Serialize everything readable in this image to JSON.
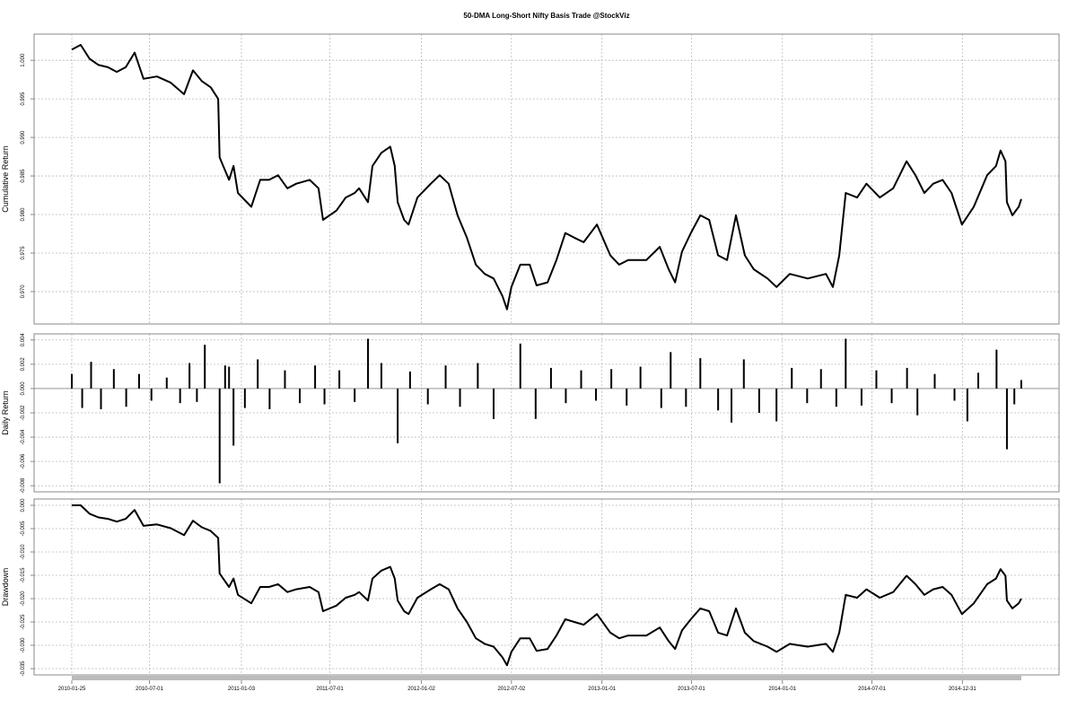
{
  "chart_data": [
    {
      "type": "line",
      "title": "50-DMA Long-Short Nifty Basis Trade @StockViz",
      "y_label": "Cumulative Return",
      "color": "#000000",
      "grid": true,
      "xlim": [
        "2010-01-25",
        "2015-05-01"
      ],
      "ylim": [
        0.9658,
        1.0034
      ],
      "yticks": [
        {
          "value": 1,
          "label": "1.000"
        },
        0.995,
        {
          "value": 0.99,
          "label": "0.990"
        },
        0.985,
        {
          "value": 0.98,
          "label": "0.980"
        },
        0.975,
        {
          "value": 0.97,
          "label": "0.970"
        }
      ],
      "x": [
        "2010-01-25",
        "2010-02-12",
        "2010-03-02",
        "2010-03-20",
        "2010-04-08",
        "2010-04-26",
        "2010-05-14",
        "2010-06-01",
        "2010-06-19",
        "2010-07-16",
        "2010-08-13",
        "2010-09-09",
        "2010-09-27",
        "2010-10-15",
        "2010-11-02",
        "2010-11-17",
        "2010-11-20",
        "2010-12-09",
        "2010-12-18",
        "2010-12-27",
        "2011-01-23",
        "2011-02-10",
        "2011-02-28",
        "2011-03-18",
        "2011-04-06",
        "2011-04-24",
        "2011-05-21",
        "2011-06-08",
        "2011-06-17",
        "2011-07-14",
        "2011-08-02",
        "2011-08-20",
        "2011-08-29",
        "2011-09-16",
        "2011-09-25",
        "2011-10-13",
        "2011-10-31",
        "2011-11-09",
        "2011-11-15",
        "2011-11-28",
        "2011-12-07",
        "2011-12-25",
        "2012-01-21",
        "2012-02-08",
        "2012-02-26",
        "2012-03-15",
        "2012-04-03",
        "2012-04-21",
        "2012-05-09",
        "2012-05-27",
        "2012-06-14",
        "2012-06-23",
        "2012-07-02",
        "2012-07-20",
        "2012-08-08",
        "2012-08-22",
        "2012-09-13",
        "2012-10-01",
        "2012-10-19",
        "2012-11-06",
        "2012-11-25",
        "2012-12-22",
        "2013-01-18",
        "2013-02-05",
        "2013-02-23",
        "2013-04-01",
        "2013-04-28",
        "2013-05-16",
        "2013-05-29",
        "2013-06-12",
        "2013-06-30",
        "2013-07-19",
        "2013-08-06",
        "2013-08-24",
        "2013-09-11",
        "2013-09-29",
        "2013-10-17",
        "2013-11-04",
        "2013-12-02",
        "2013-12-20",
        "2014-01-16",
        "2014-02-21",
        "2014-03-30",
        "2014-04-13",
        "2014-04-26",
        "2014-05-09",
        "2014-06-01",
        "2014-06-20",
        "2014-07-17",
        "2014-08-13",
        "2014-09-09",
        "2014-09-27",
        "2014-10-15",
        "2014-11-02",
        "2014-11-21",
        "2014-12-09",
        "2014-12-30",
        "2015-01-23",
        "2015-02-19",
        "2015-03-09",
        "2015-03-18",
        "2015-03-28",
        "2015-03-31",
        "2015-04-11",
        "2015-04-24",
        "2015-04-29"
      ],
      "values": [
        1.0014,
        1.002,
        1.0002,
        0.9994,
        0.9991,
        0.9985,
        0.9991,
        1.001,
        0.9976,
        0.9979,
        0.9971,
        0.9956,
        0.9987,
        0.9973,
        0.9965,
        0.995,
        0.9874,
        0.9845,
        0.9863,
        0.9828,
        0.981,
        0.9845,
        0.9845,
        0.9851,
        0.9834,
        0.984,
        0.9845,
        0.9834,
        0.9793,
        0.9805,
        0.9822,
        0.9828,
        0.9834,
        0.9816,
        0.9863,
        0.988,
        0.9888,
        0.9863,
        0.9816,
        0.9793,
        0.9787,
        0.9822,
        0.984,
        0.9851,
        0.984,
        0.9799,
        0.977,
        0.9735,
        0.9723,
        0.9717,
        0.9694,
        0.9677,
        0.9706,
        0.9735,
        0.9735,
        0.9708,
        0.9712,
        0.9741,
        0.9776,
        0.977,
        0.9764,
        0.9787,
        0.9747,
        0.9735,
        0.9741,
        0.9741,
        0.9758,
        0.9729,
        0.9712,
        0.9752,
        0.9776,
        0.9799,
        0.9793,
        0.9747,
        0.9741,
        0.9799,
        0.9747,
        0.9729,
        0.9717,
        0.9706,
        0.9723,
        0.9717,
        0.9723,
        0.9706,
        0.9747,
        0.9828,
        0.9822,
        0.984,
        0.9822,
        0.9834,
        0.9869,
        0.9851,
        0.9828,
        0.984,
        0.9845,
        0.9828,
        0.9787,
        0.981,
        0.9851,
        0.9863,
        0.9883,
        0.9869,
        0.9816,
        0.9799,
        0.981,
        0.982
      ]
    },
    {
      "type": "bar",
      "y_label": "Daily Return",
      "color": "#000000",
      "grid": true,
      "xlim": [
        "2010-01-25",
        "2015-05-01"
      ],
      "ylim": [
        -0.0085,
        0.0045
      ],
      "yticks": [
        0.004,
        0.002,
        {
          "value": 0,
          "label": "0.000"
        },
        -0.002,
        -0.004,
        -0.006,
        -0.008
      ],
      "x": [
        "2010-01-25",
        "2010-02-15",
        "2010-03-05",
        "2010-03-25",
        "2010-04-20",
        "2010-05-15",
        "2010-06-10",
        "2010-07-05",
        "2010-08-05",
        "2010-09-01",
        "2010-09-20",
        "2010-10-05",
        "2010-10-21",
        "2010-11-20",
        "2010-12-01",
        "2010-12-09",
        "2010-12-18",
        "2011-01-10",
        "2011-02-05",
        "2011-03-01",
        "2011-04-01",
        "2011-05-01",
        "2011-06-01",
        "2011-06-20",
        "2011-07-20",
        "2011-08-20",
        "2011-09-16",
        "2011-10-13",
        "2011-11-15",
        "2011-12-10",
        "2012-01-15",
        "2012-02-20",
        "2012-03-20",
        "2012-04-25",
        "2012-05-27",
        "2012-07-20",
        "2012-08-20",
        "2012-09-20",
        "2012-10-20",
        "2012-11-20",
        "2012-12-20",
        "2013-01-20",
        "2013-02-20",
        "2013-03-20",
        "2013-05-01",
        "2013-05-20",
        "2013-06-20",
        "2013-07-19",
        "2013-08-24",
        "2013-09-20",
        "2013-10-15",
        "2013-11-15",
        "2013-12-20",
        "2014-01-20",
        "2014-02-20",
        "2014-03-20",
        "2014-04-20",
        "2014-05-09",
        "2014-06-10",
        "2014-07-10",
        "2014-08-10",
        "2014-09-10",
        "2014-10-01",
        "2014-11-05",
        "2014-12-15",
        "2015-01-10",
        "2015-02-01",
        "2015-03-10",
        "2015-03-31",
        "2015-04-15",
        "2015-04-29"
      ],
      "values": [
        0.0012,
        -0.0016,
        0.0022,
        -0.0017,
        0.0016,
        -0.0015,
        0.0012,
        -0.001,
        0.0009,
        -0.0012,
        0.0021,
        -0.0011,
        0.0036,
        -0.0078,
        0.0019,
        0.0018,
        -0.0047,
        -0.0016,
        0.0024,
        -0.0017,
        0.0015,
        -0.0012,
        0.0019,
        -0.0013,
        0.0015,
        -0.0011,
        0.0041,
        0.0021,
        -0.0045,
        0.0014,
        -0.0013,
        0.0019,
        -0.0015,
        0.0021,
        -0.0025,
        0.0037,
        -0.0025,
        0.0017,
        -0.0012,
        0.0015,
        -0.001,
        0.0016,
        -0.0014,
        0.0018,
        -0.0016,
        0.003,
        -0.0015,
        0.0025,
        -0.0018,
        -0.0028,
        0.0024,
        -0.002,
        -0.0027,
        0.0017,
        -0.0012,
        0.0016,
        -0.0015,
        0.0041,
        -0.0014,
        0.0015,
        -0.0012,
        0.0017,
        -0.0022,
        0.0012,
        -0.001,
        -0.0027,
        0.0013,
        0.0032,
        -0.005,
        -0.0013,
        0.0007
      ]
    },
    {
      "type": "line",
      "y_label": "Drawdown",
      "color": "#000000",
      "grid": true,
      "xlim": [
        "2010-01-25",
        "2015-05-01"
      ],
      "ylim": [
        -0.03635,
        0.00135
      ],
      "yticks": [
        {
          "value": 0,
          "label": "0.000"
        },
        -0.005,
        {
          "value": -0.01,
          "label": "-0.010"
        },
        -0.015,
        {
          "value": -0.02,
          "label": "-0.020"
        },
        -0.025,
        {
          "value": -0.03,
          "label": "-0.030"
        },
        -0.035
      ],
      "xticks": [
        "2010-01-25",
        "2010-07-01",
        "2011-01-03",
        "2011-07-01",
        "2012-01-02",
        "2012-07-02",
        "2013-01-01",
        "2013-07-01",
        "2014-01-01",
        "2014-07-01",
        "2014-12-31"
      ],
      "x": [
        "2010-01-25",
        "2010-02-12",
        "2010-03-02",
        "2010-03-20",
        "2010-04-08",
        "2010-04-26",
        "2010-05-14",
        "2010-06-01",
        "2010-06-19",
        "2010-07-16",
        "2010-08-13",
        "2010-09-09",
        "2010-09-27",
        "2010-10-15",
        "2010-11-02",
        "2010-11-17",
        "2010-11-20",
        "2010-12-09",
        "2010-12-18",
        "2010-12-27",
        "2011-01-23",
        "2011-02-10",
        "2011-02-28",
        "2011-03-18",
        "2011-04-06",
        "2011-04-24",
        "2011-05-21",
        "2011-06-08",
        "2011-06-17",
        "2011-07-14",
        "2011-08-02",
        "2011-08-20",
        "2011-08-29",
        "2011-09-16",
        "2011-09-25",
        "2011-10-13",
        "2011-10-31",
        "2011-11-09",
        "2011-11-15",
        "2011-11-28",
        "2011-12-07",
        "2011-12-25",
        "2012-01-21",
        "2012-02-08",
        "2012-02-26",
        "2012-03-15",
        "2012-04-03",
        "2012-04-21",
        "2012-05-09",
        "2012-05-27",
        "2012-06-14",
        "2012-06-23",
        "2012-07-02",
        "2012-07-20",
        "2012-08-08",
        "2012-08-22",
        "2012-09-13",
        "2012-10-01",
        "2012-10-19",
        "2012-11-06",
        "2012-11-25",
        "2012-12-22",
        "2013-01-18",
        "2013-02-05",
        "2013-02-23",
        "2013-04-01",
        "2013-04-28",
        "2013-05-16",
        "2013-05-29",
        "2013-06-12",
        "2013-06-30",
        "2013-07-19",
        "2013-08-06",
        "2013-08-24",
        "2013-09-11",
        "2013-09-29",
        "2013-10-17",
        "2013-11-04",
        "2013-12-02",
        "2013-12-20",
        "2014-01-16",
        "2014-02-21",
        "2014-03-30",
        "2014-04-13",
        "2014-04-26",
        "2014-05-09",
        "2014-06-01",
        "2014-06-20",
        "2014-07-17",
        "2014-08-13",
        "2014-09-09",
        "2014-09-27",
        "2014-10-15",
        "2014-11-02",
        "2014-11-21",
        "2014-12-09",
        "2014-12-30",
        "2015-01-23",
        "2015-02-19",
        "2015-03-09",
        "2015-03-18",
        "2015-03-28",
        "2015-03-31",
        "2015-04-11",
        "2015-04-24",
        "2015-04-29"
      ],
      "values": [
        0,
        0,
        -0.0018,
        -0.0026,
        -0.0029,
        -0.0035,
        -0.0029,
        -0.001,
        -0.0044,
        -0.0041,
        -0.0049,
        -0.0064,
        -0.0033,
        -0.0047,
        -0.0055,
        -0.007,
        -0.0146,
        -0.0175,
        -0.0157,
        -0.0192,
        -0.021,
        -0.0175,
        -0.0175,
        -0.0169,
        -0.0186,
        -0.018,
        -0.0175,
        -0.0186,
        -0.0227,
        -0.0215,
        -0.0198,
        -0.0192,
        -0.0186,
        -0.0204,
        -0.0157,
        -0.014,
        -0.0132,
        -0.0157,
        -0.0204,
        -0.0227,
        -0.0233,
        -0.0198,
        -0.018,
        -0.0169,
        -0.018,
        -0.0221,
        -0.025,
        -0.0285,
        -0.0297,
        -0.0303,
        -0.0326,
        -0.0343,
        -0.0314,
        -0.0285,
        -0.0285,
        -0.0312,
        -0.0308,
        -0.0279,
        -0.0244,
        -0.025,
        -0.0256,
        -0.0233,
        -0.0273,
        -0.0285,
        -0.0279,
        -0.0279,
        -0.0262,
        -0.0291,
        -0.0308,
        -0.0268,
        -0.0244,
        -0.0221,
        -0.0227,
        -0.0273,
        -0.0279,
        -0.0221,
        -0.0273,
        -0.0291,
        -0.0303,
        -0.0314,
        -0.0297,
        -0.0303,
        -0.0297,
        -0.0314,
        -0.0273,
        -0.0192,
        -0.0198,
        -0.018,
        -0.0198,
        -0.0186,
        -0.0151,
        -0.0169,
        -0.0192,
        -0.018,
        -0.0175,
        -0.0192,
        -0.0233,
        -0.021,
        -0.0169,
        -0.0157,
        -0.0137,
        -0.0151,
        -0.0204,
        -0.0221,
        -0.021,
        -0.02
      ]
    }
  ]
}
